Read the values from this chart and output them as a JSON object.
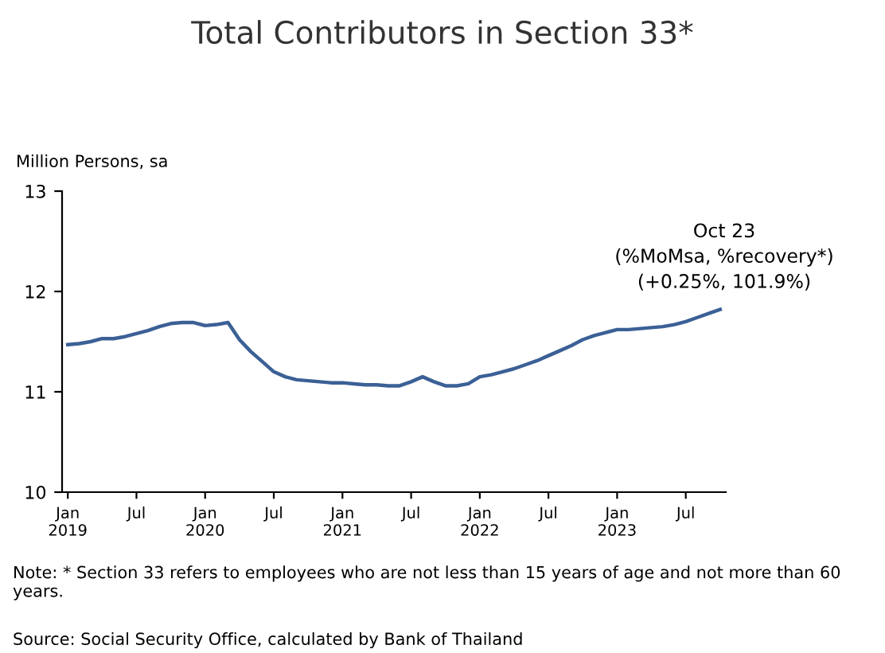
{
  "chart_data": {
    "type": "line",
    "title": "Total Contributors in Section 33*",
    "ylabel": "Million Persons, sa",
    "categories": [
      "Jan\n2019",
      null,
      null,
      null,
      null,
      null,
      "Jul",
      null,
      null,
      null,
      null,
      null,
      "Jan\n2020",
      null,
      null,
      null,
      null,
      null,
      "Jul",
      null,
      null,
      null,
      null,
      null,
      "Jan\n2021",
      null,
      null,
      null,
      null,
      null,
      "Jul",
      null,
      null,
      null,
      null,
      null,
      "Jan\n2022",
      null,
      null,
      null,
      null,
      null,
      "Jul",
      null,
      null,
      null,
      null,
      null,
      "Jan\n2023",
      null,
      null,
      null,
      null,
      null,
      "Jul",
      null,
      null,
      null
    ],
    "series": [
      {
        "color": "#3b6096",
        "values": [
          11.47,
          11.48,
          11.5,
          11.53,
          11.53,
          11.55,
          11.58,
          11.61,
          11.65,
          11.68,
          11.69,
          11.69,
          11.66,
          11.67,
          11.69,
          11.52,
          11.4,
          11.3,
          11.2,
          11.15,
          11.12,
          11.11,
          11.1,
          11.09,
          11.09,
          11.08,
          11.07,
          11.07,
          11.06,
          11.06,
          11.1,
          11.15,
          11.1,
          11.06,
          11.06,
          11.08,
          11.15,
          11.17,
          11.2,
          11.23,
          11.27,
          11.31,
          11.36,
          11.41,
          11.46,
          11.52,
          11.56,
          11.59,
          11.62,
          11.62,
          11.63,
          11.64,
          11.65,
          11.67,
          11.7,
          11.74,
          11.78,
          11.82
        ]
      }
    ],
    "ylim": [
      10,
      13
    ],
    "yticks": [
      10,
      11,
      12,
      13
    ],
    "grid": false,
    "marker": "none",
    "line_style": "solid",
    "annotations": [
      "Oct 23\n(%MoMsa, %recovery*)\n(+0.25%, 101.9%)",
      "Note: * Section 33 refers to employees who are not less than 15 years of age and not more than 60 years.",
      "Source: Social Security Office, calculated by Bank of Thailand"
    ]
  }
}
